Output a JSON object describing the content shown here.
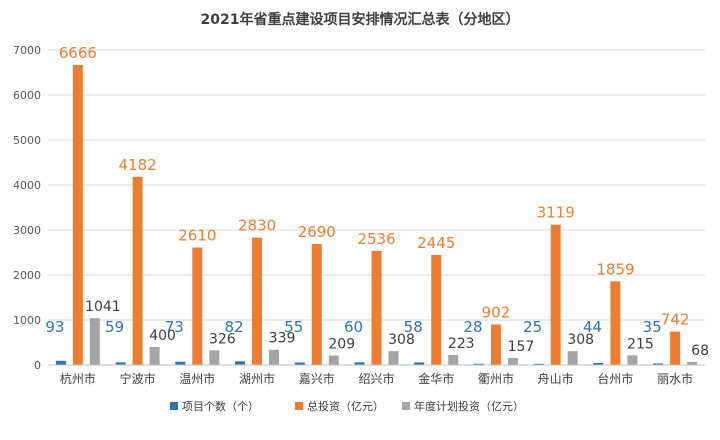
{
  "chart_data": {
    "type": "bar",
    "title": "2021年省重点建设项目安排情况汇总表（分地区）",
    "categories": [
      "杭州市",
      "宁波市",
      "温州市",
      "湖州市",
      "嘉兴市",
      "绍兴市",
      "金华市",
      "衢州市",
      "舟山市",
      "台州市",
      "丽水市"
    ],
    "series": [
      {
        "name": "项目个数（个）",
        "color": "#2E75B6",
        "values": [
          93,
          59,
          73,
          82,
          55,
          60,
          58,
          28,
          25,
          44,
          35
        ]
      },
      {
        "name": "总投资（亿元）",
        "color": "#ED7D31",
        "values": [
          6666,
          4182,
          2610,
          2830,
          2690,
          2536,
          2445,
          902,
          3119,
          1859,
          742
        ]
      },
      {
        "name": "年度计划投资（亿元）",
        "color": "#A5A5A5",
        "values": [
          1041,
          400,
          326,
          339,
          209,
          308,
          223,
          157,
          308,
          215,
          68
        ]
      }
    ],
    "label_colors": [
      "#2E75B6",
      "#ED7D31",
      "#404040"
    ],
    "xlabel": "",
    "ylabel": "",
    "ylim": [
      0,
      7000
    ],
    "yticks": [
      0,
      1000,
      2000,
      3000,
      4000,
      5000,
      6000,
      7000
    ],
    "grid": true,
    "legend_position": "bottom"
  }
}
